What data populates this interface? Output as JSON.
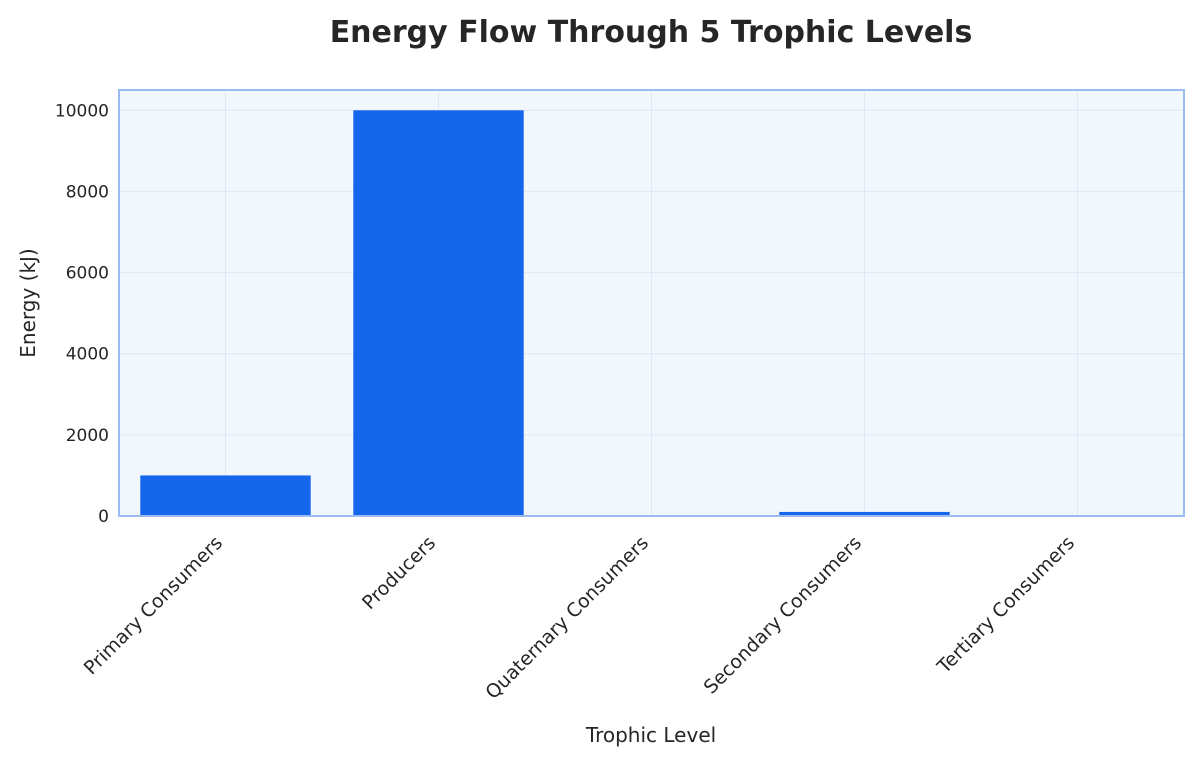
{
  "chart_data": {
    "type": "bar",
    "title": "Energy Flow Through 5 Trophic Levels",
    "xlabel": "Trophic Level",
    "ylabel": "Energy (kJ)",
    "categories": [
      "Primary Consumers",
      "Producers",
      "Quaternary Consumers",
      "Secondary Consumers",
      "Tertiary Consumers"
    ],
    "values": [
      1000,
      10000,
      1,
      100,
      10
    ],
    "ylim": [
      0,
      10500
    ],
    "yticks": [
      0,
      2000,
      4000,
      6000,
      8000,
      10000
    ],
    "grid": true,
    "legend": "none",
    "colors": {
      "bar": "#1566ea",
      "plot_background": "#f2f6fd",
      "plot_border": "#9bbcf0",
      "grid": "#dfe6f6",
      "text": "#262626"
    }
  }
}
